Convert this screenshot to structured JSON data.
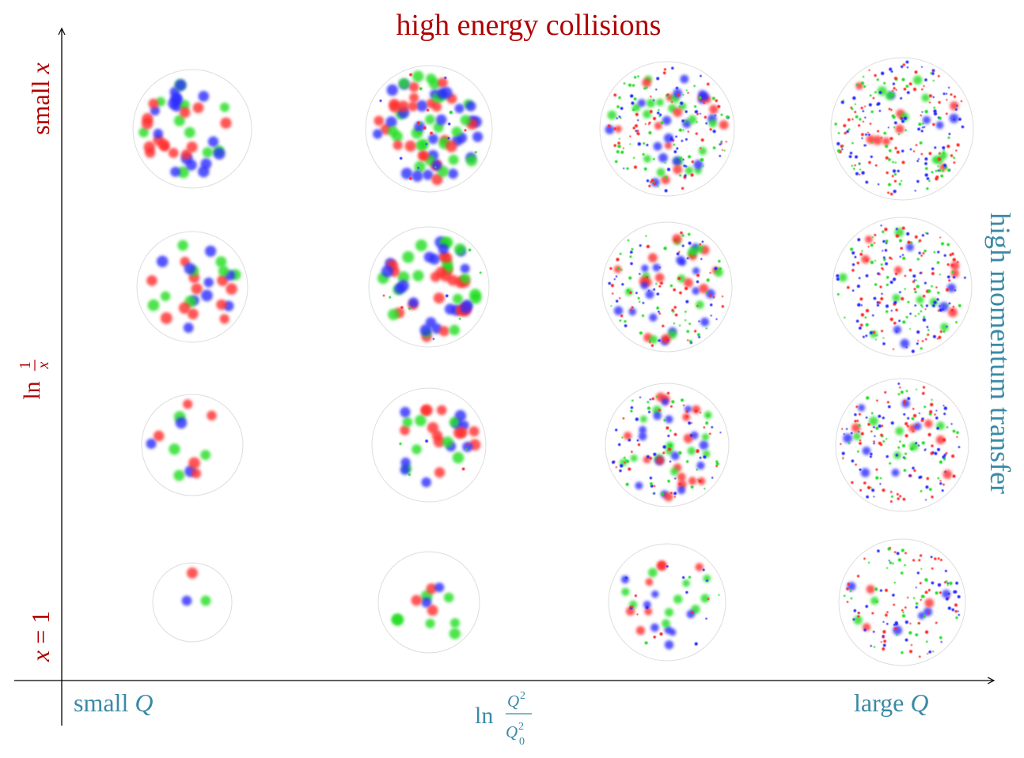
{
  "title": "high energy collisions",
  "y_axis": {
    "top_label_prefix": "small ",
    "top_label_var": "x",
    "middle_label": "ln",
    "middle_frac_num": "1",
    "middle_frac_den": "x",
    "bottom_label_var": "x",
    "bottom_label_rest": " = 1"
  },
  "x_axis": {
    "left_label_prefix": "small ",
    "left_label_var": "Q",
    "middle_label": "ln",
    "middle_num_var": "Q",
    "middle_num_exp": "2",
    "middle_den_var": "Q",
    "middle_den_sub": "0",
    "middle_den_exp": "2",
    "right_label_prefix": "large ",
    "right_label_var": "Q"
  },
  "side_label": "high momentum transfer",
  "colors": {
    "title": "#b00000",
    "teal": "#3a8aa6",
    "axis": "#000000",
    "circle_outline": "#dddddd",
    "parton_red": "#ff2a2a",
    "parton_green": "#22dd22",
    "parton_blue": "#2a2aff"
  },
  "grid": {
    "columns": 4,
    "rows": 4,
    "column_meaning": "increasing Q from left to right",
    "row_meaning": "decreasing x from bottom to top",
    "cells": [
      {
        "row": 0,
        "col": 0,
        "large_partons": 40,
        "small_partons": 0
      },
      {
        "row": 0,
        "col": 1,
        "large_partons": 70,
        "small_partons": 20
      },
      {
        "row": 0,
        "col": 2,
        "large_partons": 45,
        "small_partons": 150
      },
      {
        "row": 0,
        "col": 3,
        "large_partons": 20,
        "small_partons": 220
      },
      {
        "row": 1,
        "col": 0,
        "large_partons": 28,
        "small_partons": 0
      },
      {
        "row": 1,
        "col": 1,
        "large_partons": 55,
        "small_partons": 10
      },
      {
        "row": 1,
        "col": 2,
        "large_partons": 40,
        "small_partons": 110
      },
      {
        "row": 1,
        "col": 3,
        "large_partons": 18,
        "small_partons": 200
      },
      {
        "row": 2,
        "col": 0,
        "large_partons": 12,
        "small_partons": 0
      },
      {
        "row": 2,
        "col": 1,
        "large_partons": 28,
        "small_partons": 6
      },
      {
        "row": 2,
        "col": 2,
        "large_partons": 40,
        "small_partons": 90
      },
      {
        "row": 2,
        "col": 3,
        "large_partons": 18,
        "small_partons": 160
      },
      {
        "row": 3,
        "col": 0,
        "large_partons": 3,
        "small_partons": 0
      },
      {
        "row": 3,
        "col": 1,
        "large_partons": 12,
        "small_partons": 0
      },
      {
        "row": 3,
        "col": 2,
        "large_partons": 25,
        "small_partons": 20
      },
      {
        "row": 3,
        "col": 3,
        "large_partons": 10,
        "small_partons": 130
      }
    ]
  }
}
